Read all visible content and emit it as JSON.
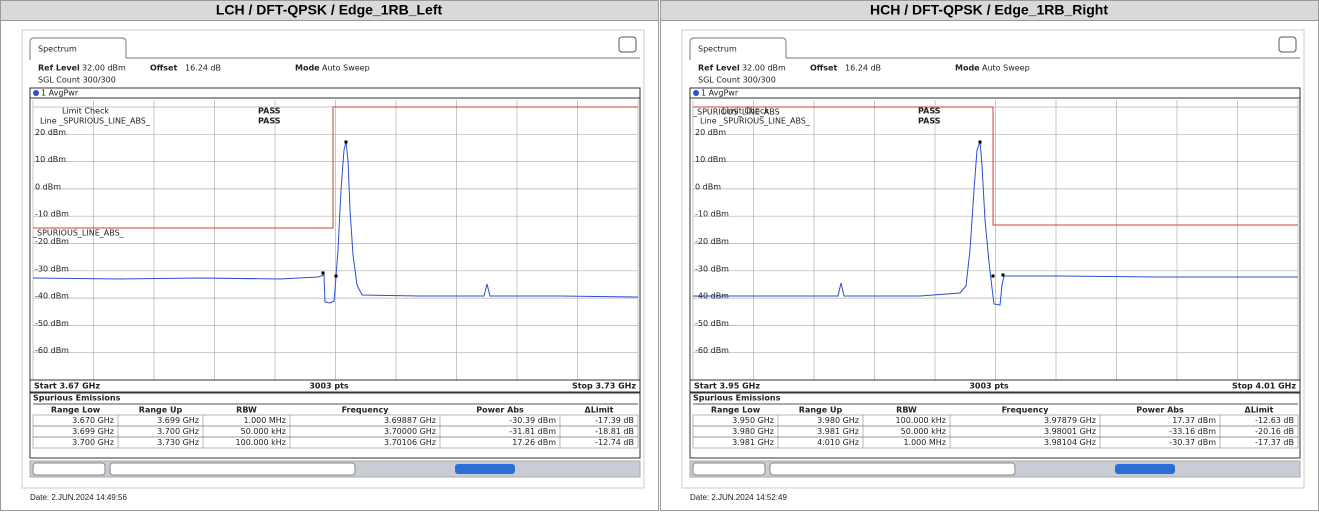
{
  "panels": [
    {
      "header": "LCH / DFT-QPSK / Edge_1RB_Left",
      "tab": "Spectrum",
      "ref_level_label": "Ref Level",
      "ref_level": "32.00 dBm",
      "offset_label": "Offset",
      "offset": "16.24 dB",
      "mode_label": "Mode",
      "mode": "Auto Sweep",
      "sgl_count": "SGL Count 300/300",
      "trace": "1 AvgPwr",
      "limit_check": "Limit Check",
      "limit_line": "Line _SPURIOUS_LINE_ABS_",
      "pass_1": "PASS",
      "pass_2": "PASS",
      "line_label": "_SPURIOUS_LINE_ABS_",
      "y_labels": [
        "20 dBm",
        "10 dBm",
        "0 dBm",
        "-10 dBm",
        "-20 dBm",
        "-30 dBm",
        "-40 dBm",
        "-50 dBm",
        "-60 dBm"
      ],
      "start": "Start 3.67 GHz",
      "points": "3003 pts",
      "stop": "Stop 3.73 GHz",
      "table": {
        "title": "Spurious Emissions",
        "columns": [
          "Range Low",
          "Range Up",
          "RBW",
          "Frequency",
          "Power Abs",
          "ΔLimit"
        ],
        "rows": [
          [
            "3.670 GHz",
            "3.699 GHz",
            "1.000 MHz",
            "3.69887 GHz",
            "-30.39 dBm",
            "-17.39 dB"
          ],
          [
            "3.699 GHz",
            "3.700 GHz",
            "50.000 kHz",
            "3.70000 GHz",
            "-31.81 dBm",
            "-18.81 dB"
          ],
          [
            "3.700 GHz",
            "3.730 GHz",
            "100.000 kHz",
            "3.70106 GHz",
            "17.26 dBm",
            "-12.74 dB"
          ]
        ]
      },
      "date": "Date: 2.JUN.2024  14:49:56"
    },
    {
      "header": "HCH / DFT-QPSK / Edge_1RB_Right",
      "tab": "Spectrum",
      "ref_level_label": "Ref Level",
      "ref_level": "32.00 dBm",
      "offset_label": "Offset",
      "offset": "16.24 dB",
      "mode_label": "Mode",
      "mode": "Auto Sweep",
      "sgl_count": "SGL Count 300/300",
      "trace": "1 AvgPwr",
      "limit_check": "Limit Check",
      "limit_line": "Line _SPURIOUS_LINE_ABS_",
      "pass_1": "PASS",
      "pass_2": "PASS",
      "line_label": "_SPURIOUS_LINE_ABS",
      "y_labels": [
        "20 dBm",
        "10 dBm",
        "0 dBm",
        "-10 dBm",
        "-20 dBm",
        "-30 dBm",
        "-40 dBm",
        "-50 dBm",
        "-60 dBm"
      ],
      "start": "Start 3.95 GHz",
      "points": "3003 pts",
      "stop": "Stop 4.01 GHz",
      "table": {
        "title": "Spurious Emissions",
        "columns": [
          "Range Low",
          "Range Up",
          "RBW",
          "Frequency",
          "Power Abs",
          "ΔLimit"
        ],
        "rows": [
          [
            "3.950 GHz",
            "3.980 GHz",
            "100.000 kHz",
            "3.97879 GHz",
            "17.37 dBm",
            "-12.63 dB"
          ],
          [
            "3.980 GHz",
            "3.981 GHz",
            "50.000 kHz",
            "3.98001 GHz",
            "-33.16 dBm",
            "-20.16 dB"
          ],
          [
            "3.981 GHz",
            "4.010 GHz",
            "1.000 MHz",
            "3.98104 GHz",
            "-30.37 dBm",
            "-17.37 dB"
          ]
        ]
      },
      "date": "Date: 2.JUN.2024  14:52:49"
    }
  ]
}
